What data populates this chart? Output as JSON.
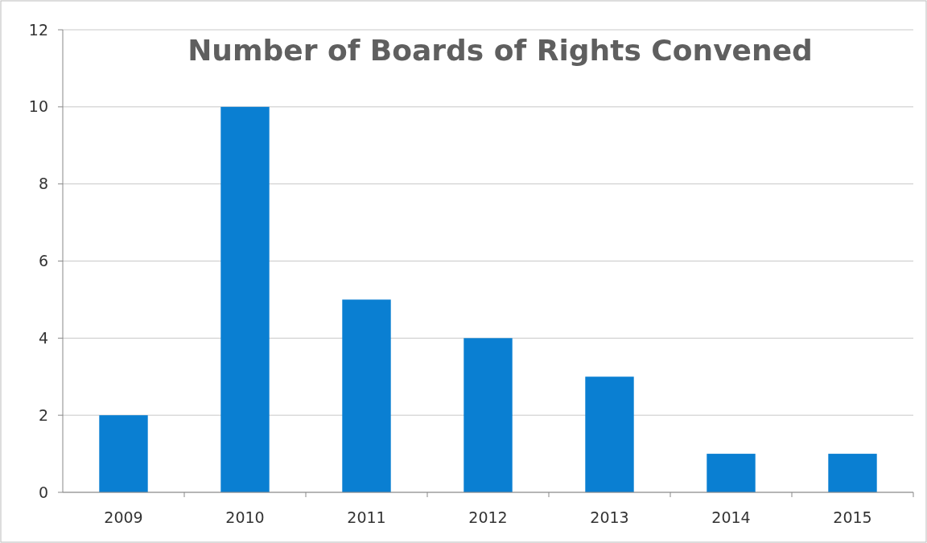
{
  "chart_data": {
    "type": "bar",
    "title": "Number of Boards of Rights Convened",
    "categories": [
      "2009",
      "2010",
      "2011",
      "2012",
      "2013",
      "2014",
      "2015"
    ],
    "values": [
      2,
      10,
      5,
      4,
      3,
      1,
      1
    ],
    "color": "#0a7fd2",
    "ylim": [
      0,
      12
    ],
    "yticks": [
      0,
      2,
      4,
      6,
      8,
      10,
      12
    ],
    "grid": "y"
  }
}
